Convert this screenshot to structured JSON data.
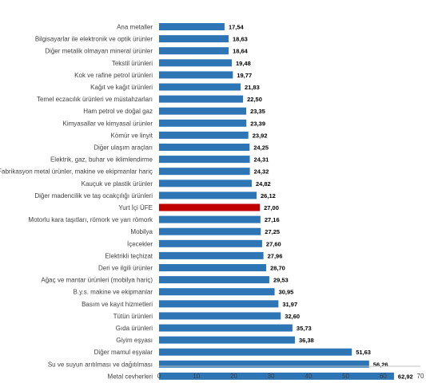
{
  "chart_data": {
    "type": "bar",
    "orientation": "horizontal",
    "categories": [
      "Ana metaller",
      "Bilgisayarlar ile elektronik ve optik ürünler",
      "Diğer metalik olmayan mineral ürünler",
      "Tekstil ürünleri",
      "Kok ve rafine petrol ürünleri",
      "Kağıt ve kağıt ürünleri",
      "Temel eczacılık ürünleri ve müstahzarları",
      "Ham petrol ve doğal gaz",
      "Kimyasallar ve kimyasal ürünler",
      "Kömür ve linyit",
      "Diğer ulaşım araçları",
      "Elektrik, gaz, buhar ve iklimlendirme",
      "Fabrikasyon metal ürünler, makine ve ekipmanlar hariç",
      "Kauçuk ve plastik ürünler",
      "Diğer madencilik ve taş ocakçılığı ürünleri",
      "Yurt İçi ÜFE",
      "Motorlu kara taşıtları, römork ve yarı römork",
      "Mobilya",
      "İçecekler",
      "Elektrikli teçhizat",
      "Deri ve ilgili ürünler",
      "Ağaç ve mantar ürünleri (mobilya hariç)",
      "B.y.s. makine ve ekipmanlar",
      "Basım ve kayıt hizmetleri",
      "Tütün ürünleri",
      "Gıda ürünleri",
      "Giyim eşyası",
      "Diğer mamul eşyalar",
      "Su ve suyun arıtılması ve dağıtılması",
      "Metal cevherleri"
    ],
    "values": [
      17.54,
      18.63,
      18.64,
      19.48,
      19.77,
      21.83,
      22.5,
      23.35,
      23.39,
      23.92,
      24.25,
      24.31,
      24.32,
      24.82,
      26.12,
      27.0,
      27.16,
      27.25,
      27.6,
      27.96,
      28.7,
      29.53,
      30.95,
      31.97,
      32.6,
      35.73,
      36.38,
      51.63,
      56.26,
      62.92
    ],
    "value_labels": [
      "17,54",
      "18,63",
      "18,64",
      "19,48",
      "19,77",
      "21,83",
      "22,50",
      "23,35",
      "23,39",
      "23,92",
      "24,25",
      "24,31",
      "24,32",
      "24,82",
      "26,12",
      "27,00",
      "27,16",
      "27,25",
      "27,60",
      "27,96",
      "28,70",
      "29,53",
      "30,95",
      "31,97",
      "32,60",
      "35,73",
      "36,38",
      "51,63",
      "56,26",
      "62,92"
    ],
    "highlight_category": "Yurt İçi ÜFE",
    "xlim": [
      0,
      70
    ],
    "x_ticks": [
      0,
      10,
      20,
      30,
      40,
      50,
      60,
      70
    ],
    "title": "",
    "xlabel": "",
    "ylabel": "",
    "grid": false,
    "colors": {
      "bar": "#2e75b6",
      "highlight": "#c00000",
      "axis": "#bfbfbf"
    }
  }
}
